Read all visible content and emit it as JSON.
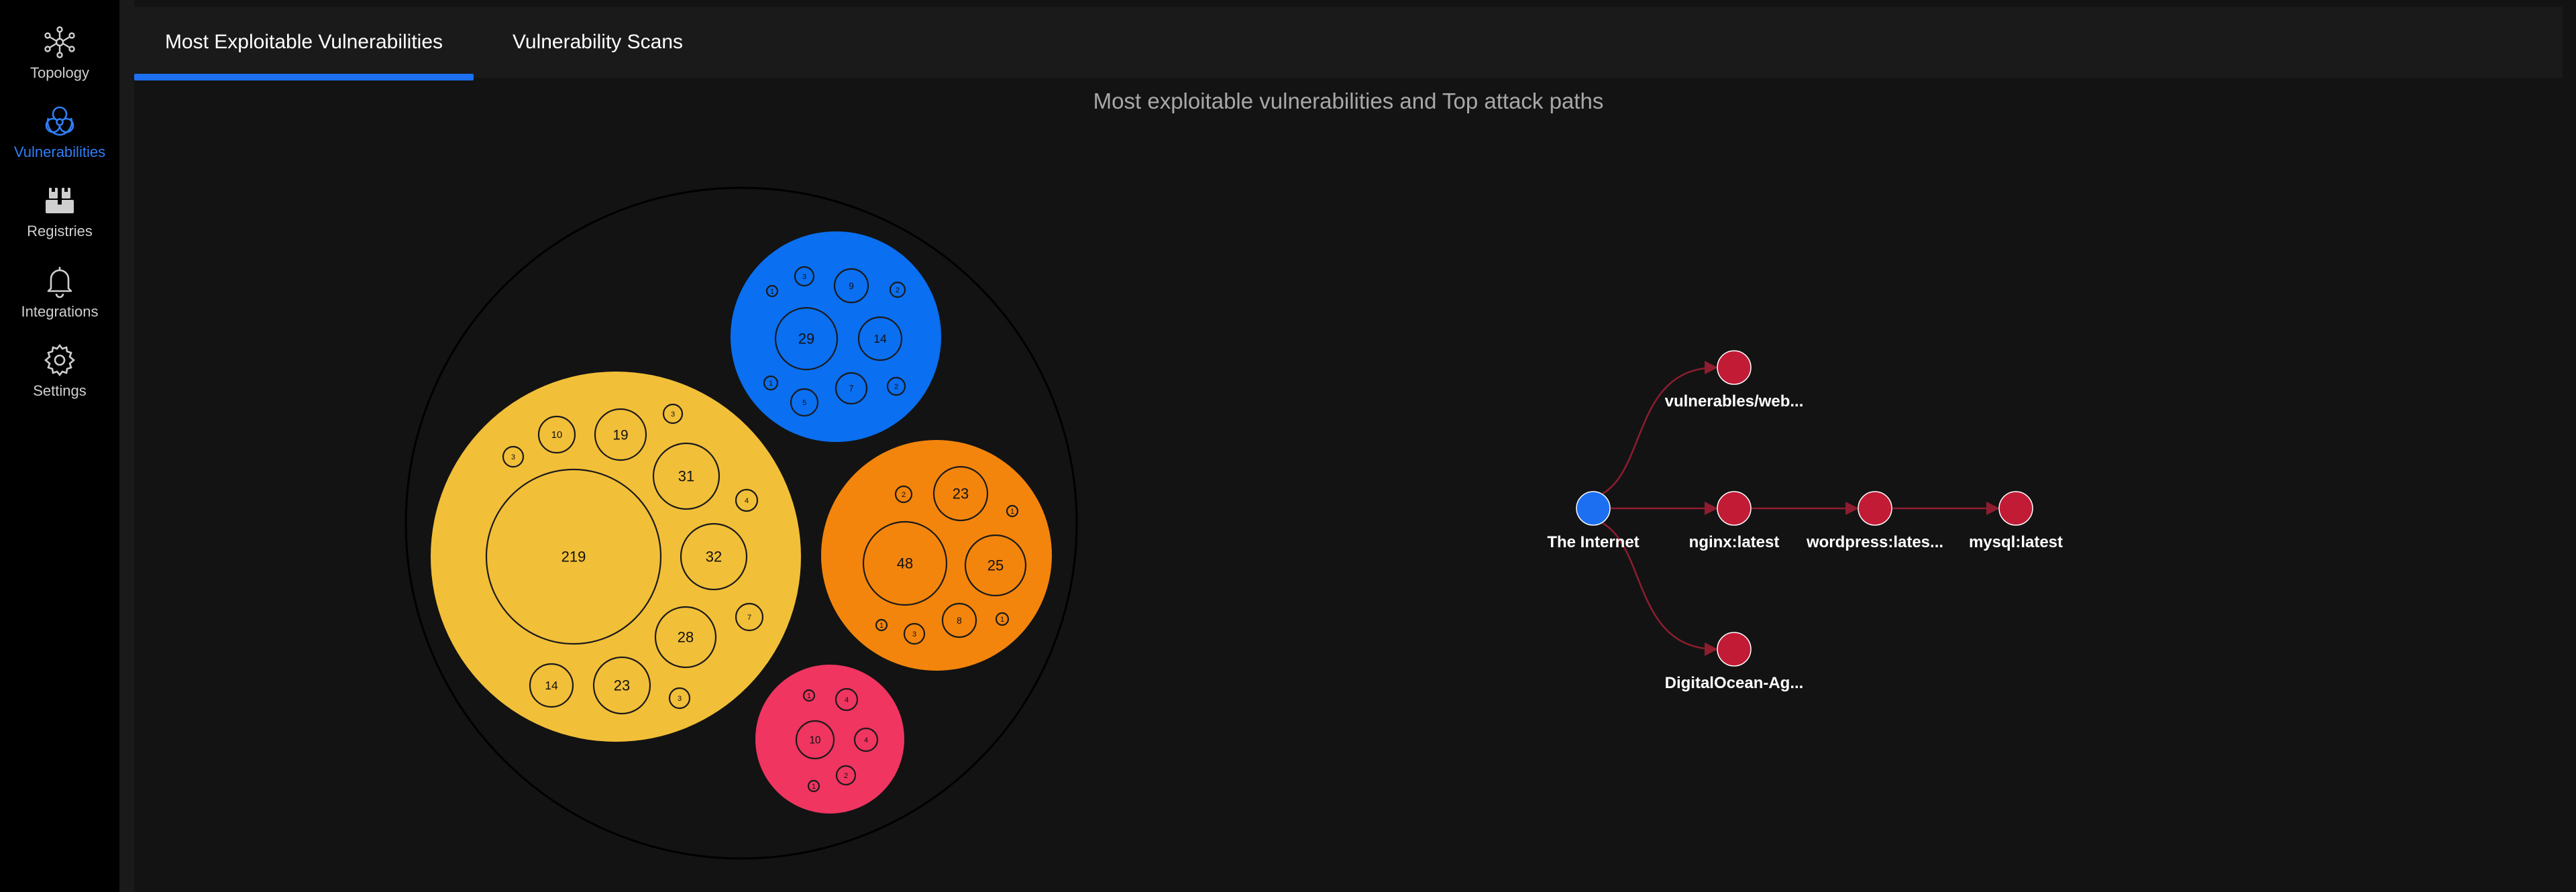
{
  "sidebar": {
    "items": [
      {
        "label": "Topology",
        "icon": "topology-icon",
        "active": false
      },
      {
        "label": "Vulnerabilities",
        "icon": "biohazard-icon",
        "active": true
      },
      {
        "label": "Registries",
        "icon": "registries-icon",
        "active": false
      },
      {
        "label": "Integrations",
        "icon": "bell-icon",
        "active": false
      },
      {
        "label": "Settings",
        "icon": "gear-icon",
        "active": false
      }
    ],
    "active_color": "#2f7ff7"
  },
  "tabs": [
    {
      "label": "Most Exploitable Vulnerabilities",
      "active": true
    },
    {
      "label": "Vulnerability Scans",
      "active": false
    }
  ],
  "main": {
    "title": "Most exploitable vulnerabilities and Top attack paths"
  },
  "bubble_chart": {
    "groups": [
      {
        "color": "#f2bf38",
        "values": [
          "219",
          "10",
          "19",
          "3",
          "3",
          "31",
          "4",
          "32",
          "7",
          "28",
          "14",
          "23",
          "3"
        ]
      },
      {
        "color": "#0a6ff0",
        "values": [
          "3",
          "9",
          "2",
          "1",
          "29",
          "14",
          "1",
          "5",
          "7",
          "2"
        ]
      },
      {
        "color": "#f3850c",
        "values": [
          "2",
          "23",
          "1",
          "48",
          "25",
          "1",
          "3",
          "8",
          "1"
        ]
      },
      {
        "color": "#ef3560",
        "values": [
          "1",
          "4",
          "10",
          "4",
          "2",
          "1"
        ]
      }
    ]
  },
  "attack_paths": {
    "nodes": [
      {
        "id": "internet",
        "label": "The Internet",
        "color": "#1c6ff0"
      },
      {
        "id": "web",
        "label": "vulnerables/web...",
        "color": "#c21b36"
      },
      {
        "id": "nginx",
        "label": "nginx:latest",
        "color": "#c21b36"
      },
      {
        "id": "wordpress",
        "label": "wordpress:lates...",
        "color": "#c21b36"
      },
      {
        "id": "mysql",
        "label": "mysql:latest",
        "color": "#c21b36"
      },
      {
        "id": "docean",
        "label": "DigitalOcean-Ag...",
        "color": "#c21b36"
      }
    ],
    "edges": [
      [
        "internet",
        "web"
      ],
      [
        "internet",
        "nginx"
      ],
      [
        "internet",
        "docean"
      ],
      [
        "nginx",
        "wordpress"
      ],
      [
        "wordpress",
        "mysql"
      ]
    ]
  }
}
